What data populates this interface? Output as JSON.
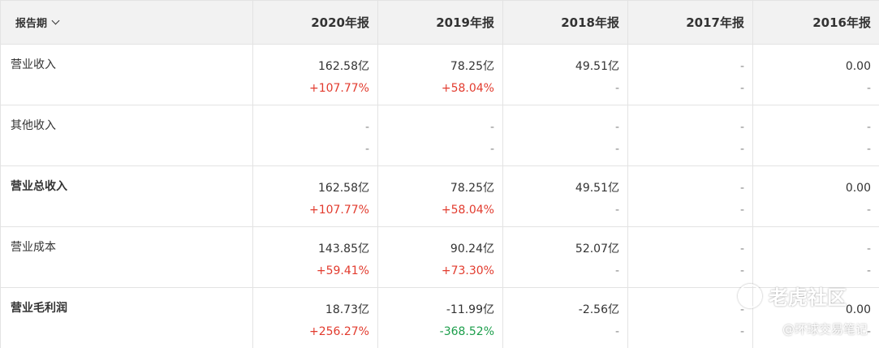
{
  "header": {
    "period_label": "报告期",
    "years": [
      "2020年报",
      "2019年报",
      "2018年报",
      "2017年报",
      "2016年报"
    ]
  },
  "rows": [
    {
      "label": "营业收入",
      "bold": false,
      "cells": [
        {
          "value": "162.58亿",
          "growth": "+107.77%",
          "dir": "up"
        },
        {
          "value": "78.25亿",
          "growth": "+58.04%",
          "dir": "up"
        },
        {
          "value": "49.51亿",
          "growth": "-",
          "dir": "none"
        },
        {
          "value": "-",
          "growth": "-",
          "dir": "none"
        },
        {
          "value": "0.00",
          "growth": "-",
          "dir": "none"
        }
      ]
    },
    {
      "label": "其他收入",
      "bold": false,
      "cells": [
        {
          "value": "-",
          "growth": "-",
          "dir": "none"
        },
        {
          "value": "-",
          "growth": "-",
          "dir": "none"
        },
        {
          "value": "-",
          "growth": "-",
          "dir": "none"
        },
        {
          "value": "-",
          "growth": "-",
          "dir": "none"
        },
        {
          "value": "-",
          "growth": "-",
          "dir": "none"
        }
      ]
    },
    {
      "label": "营业总收入",
      "bold": true,
      "cells": [
        {
          "value": "162.58亿",
          "growth": "+107.77%",
          "dir": "up"
        },
        {
          "value": "78.25亿",
          "growth": "+58.04%",
          "dir": "up"
        },
        {
          "value": "49.51亿",
          "growth": "-",
          "dir": "none"
        },
        {
          "value": "-",
          "growth": "-",
          "dir": "none"
        },
        {
          "value": "0.00",
          "growth": "-",
          "dir": "none"
        }
      ]
    },
    {
      "label": "营业成本",
      "bold": false,
      "cells": [
        {
          "value": "143.85亿",
          "growth": "+59.41%",
          "dir": "up"
        },
        {
          "value": "90.24亿",
          "growth": "+73.30%",
          "dir": "up"
        },
        {
          "value": "52.07亿",
          "growth": "-",
          "dir": "none"
        },
        {
          "value": "-",
          "growth": "-",
          "dir": "none"
        },
        {
          "value": "-",
          "growth": "-",
          "dir": "none"
        }
      ]
    },
    {
      "label": "营业毛利润",
      "bold": true,
      "cells": [
        {
          "value": "18.73亿",
          "growth": "+256.27%",
          "dir": "up"
        },
        {
          "value": "-11.99亿",
          "growth": "-368.52%",
          "dir": "down"
        },
        {
          "value": "-2.56亿",
          "growth": "-",
          "dir": "none"
        },
        {
          "value": "-",
          "growth": "-",
          "dir": "none"
        },
        {
          "value": "0.00",
          "growth": "-",
          "dir": "none"
        }
      ]
    }
  ],
  "watermark": {
    "brand": "老虎社区",
    "handle": "@环球交易笔记"
  },
  "colors": {
    "up": "#e23b2e",
    "down": "#1c9e4b",
    "header_bg": "#f2f2f2",
    "border": "#e3e3e3"
  }
}
